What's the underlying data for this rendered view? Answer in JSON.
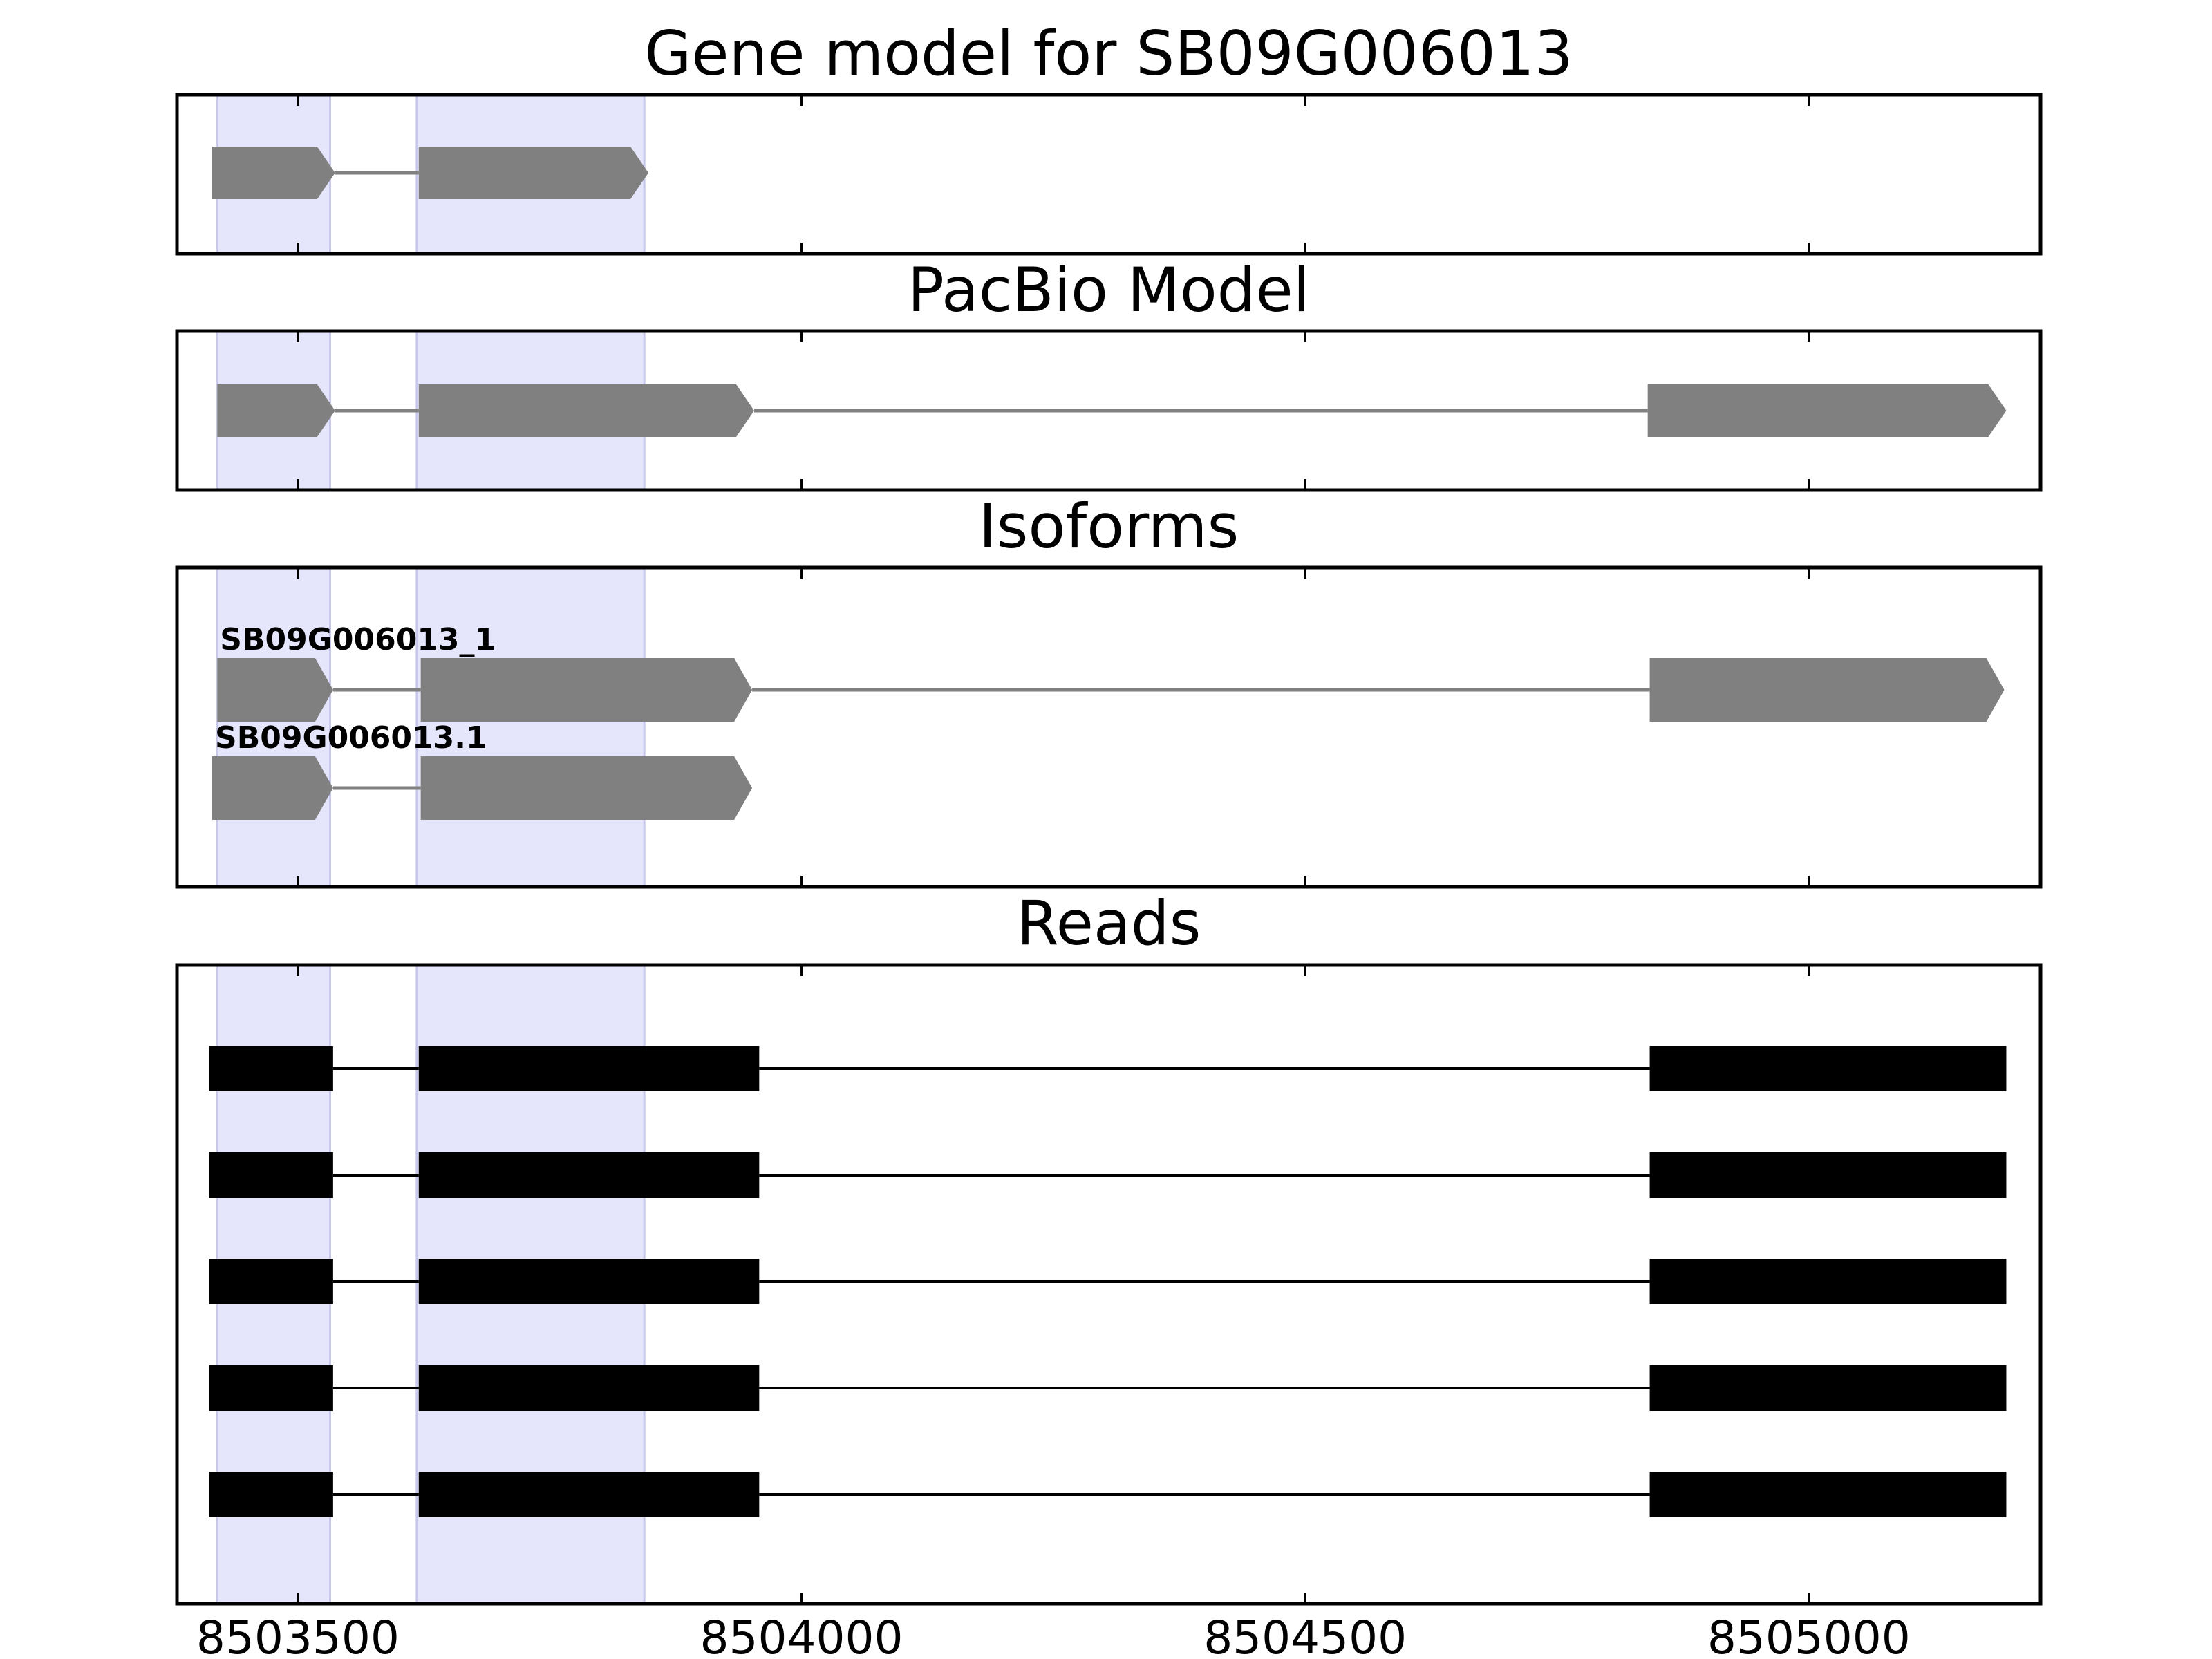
{
  "chart_data": {
    "type": "gene-model",
    "xlim": [
      8503380,
      8505230
    ],
    "x_ticks": [
      8503500,
      8504000,
      8504500,
      8505000
    ],
    "tick_labels": [
      "8503500",
      "8504000",
      "8504500",
      "8505000"
    ],
    "highlight_regions": [
      [
        8503420,
        8503532
      ],
      [
        8503618,
        8503844
      ]
    ],
    "colors": {
      "highlight": "#e5e5fb",
      "highlight_edge": "#c8c8ec",
      "model": "#808080",
      "reads": "#000000"
    },
    "panels": [
      {
        "key": "gene_model",
        "title": "Gene model for SB09G006013",
        "tracks": [
          {
            "label": "",
            "exons": [
              [
                8503415,
                8503537
              ],
              [
                8503620,
                8503848
              ]
            ]
          }
        ]
      },
      {
        "key": "pacbio",
        "title": "PacBio Model",
        "tracks": [
          {
            "label": "",
            "exons": [
              [
                8503420,
                8503537
              ],
              [
                8503620,
                8503953
              ],
              [
                8504840,
                8505196
              ]
            ]
          }
        ]
      },
      {
        "key": "isoforms",
        "title": "Isoforms",
        "tracks": [
          {
            "label": "SB09G006013_1",
            "exons": [
              [
                8503420,
                8503535
              ],
              [
                8503622,
                8503951
              ],
              [
                8504842,
                8505194
              ]
            ]
          },
          {
            "label": "SB09G006013.1",
            "exons": [
              [
                8503415,
                8503535
              ],
              [
                8503622,
                8503951
              ]
            ]
          }
        ]
      },
      {
        "key": "reads",
        "title": "Reads",
        "tracks": [
          {
            "exons": [
              [
                8503412,
                8503535
              ],
              [
                8503620,
                8503958
              ],
              [
                8504842,
                8505196
              ]
            ]
          },
          {
            "exons": [
              [
                8503412,
                8503535
              ],
              [
                8503620,
                8503958
              ],
              [
                8504842,
                8505196
              ]
            ]
          },
          {
            "exons": [
              [
                8503412,
                8503535
              ],
              [
                8503620,
                8503958
              ],
              [
                8504842,
                8505196
              ]
            ]
          },
          {
            "exons": [
              [
                8503412,
                8503535
              ],
              [
                8503620,
                8503958
              ],
              [
                8504842,
                8505196
              ]
            ]
          },
          {
            "exons": [
              [
                8503412,
                8503535
              ],
              [
                8503620,
                8503958
              ],
              [
                8504842,
                8505196
              ]
            ]
          }
        ]
      }
    ]
  }
}
